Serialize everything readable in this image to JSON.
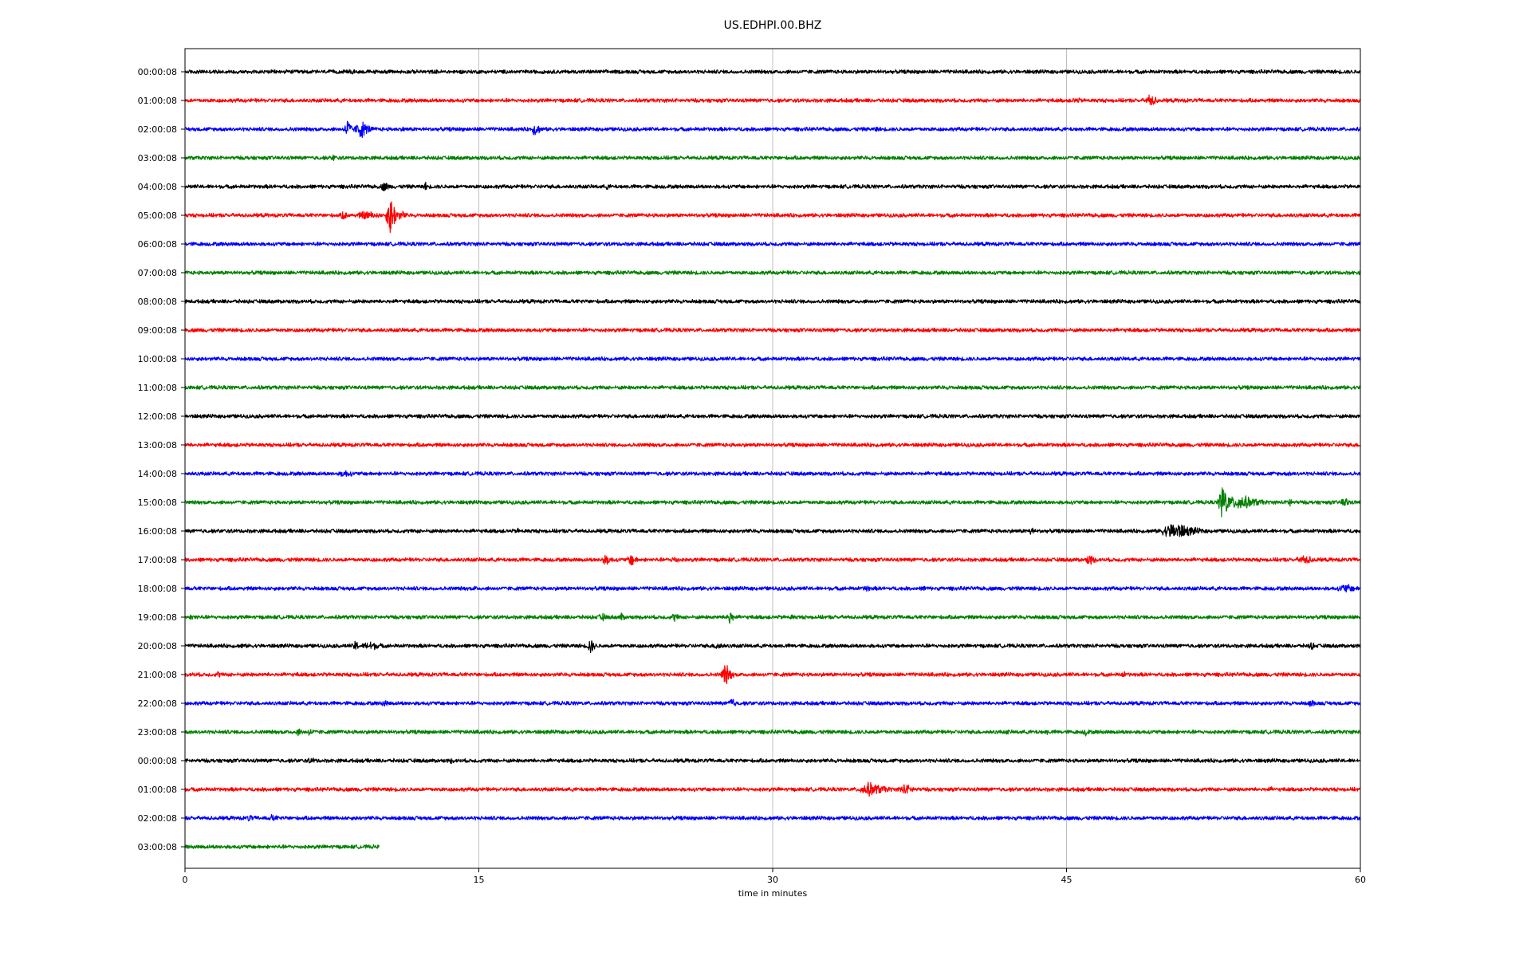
{
  "chart_data": {
    "type": "line",
    "title": "US.EDHPI.00.BHZ",
    "xlabel": "time in minutes",
    "ylabel": "",
    "xlim": [
      0,
      60
    ],
    "x_ticks": [
      "0",
      "15",
      "30",
      "45",
      "60"
    ],
    "x_tick_values": [
      0,
      15,
      30,
      45,
      60
    ],
    "grid": "vertical",
    "legend": "none",
    "colors": [
      "#000000",
      "#ff0000",
      "#0000ff",
      "#008000"
    ],
    "rows": [
      {
        "label": "00:00:08",
        "color": "#000000",
        "end_minute": 60,
        "events": [
          {
            "t": 8.5,
            "amp": 0.2,
            "dur": 0.6
          },
          {
            "t": 13.6,
            "amp": 0.15,
            "dur": 0.3
          }
        ]
      },
      {
        "label": "01:00:08",
        "color": "#ff0000",
        "end_minute": 60,
        "events": [
          {
            "t": 45.5,
            "amp": 0.2,
            "dur": 0.8
          },
          {
            "t": 49.3,
            "amp": 0.45,
            "dur": 0.5
          },
          {
            "t": 55.8,
            "amp": 0.15,
            "dur": 0.4
          }
        ]
      },
      {
        "label": "02:00:08",
        "color": "#0000ff",
        "end_minute": 60,
        "events": [
          {
            "t": 5.5,
            "amp": 0.2,
            "dur": 0.3
          },
          {
            "t": 8.3,
            "amp": 0.7,
            "dur": 0.3
          },
          {
            "t": 9.0,
            "amp": 0.6,
            "dur": 0.6
          },
          {
            "t": 11.2,
            "amp": 0.2,
            "dur": 0.3
          },
          {
            "t": 17.9,
            "amp": 0.45,
            "dur": 0.4
          },
          {
            "t": 35.3,
            "amp": 0.2,
            "dur": 0.3
          }
        ]
      },
      {
        "label": "03:00:08",
        "color": "#008000",
        "end_minute": 60,
        "events": [
          {
            "t": 7.6,
            "amp": 0.3,
            "dur": 0.2
          },
          {
            "t": 24.0,
            "amp": 0.2,
            "dur": 0.3
          }
        ]
      },
      {
        "label": "04:00:08",
        "color": "#000000",
        "end_minute": 60,
        "events": [
          {
            "t": 10.2,
            "amp": 0.35,
            "dur": 0.4
          },
          {
            "t": 12.3,
            "amp": 0.3,
            "dur": 0.2
          },
          {
            "t": 21.6,
            "amp": 0.2,
            "dur": 0.4
          }
        ]
      },
      {
        "label": "05:00:08",
        "color": "#ff0000",
        "end_minute": 60,
        "events": [
          {
            "t": 8.1,
            "amp": 0.35,
            "dur": 0.3
          },
          {
            "t": 9.3,
            "amp": 0.3,
            "dur": 1.2
          },
          {
            "t": 10.5,
            "amp": 1.3,
            "dur": 0.4
          },
          {
            "t": 11.1,
            "amp": 0.3,
            "dur": 0.4
          }
        ]
      },
      {
        "label": "06:00:08",
        "color": "#0000ff",
        "end_minute": 60,
        "events": []
      },
      {
        "label": "07:00:08",
        "color": "#008000",
        "end_minute": 60,
        "events": []
      },
      {
        "label": "08:00:08",
        "color": "#000000",
        "end_minute": 60,
        "events": []
      },
      {
        "label": "09:00:08",
        "color": "#ff0000",
        "end_minute": 60,
        "events": []
      },
      {
        "label": "10:00:08",
        "color": "#0000ff",
        "end_minute": 60,
        "events": []
      },
      {
        "label": "11:00:08",
        "color": "#008000",
        "end_minute": 60,
        "events": []
      },
      {
        "label": "12:00:08",
        "color": "#000000",
        "end_minute": 60,
        "events": []
      },
      {
        "label": "13:00:08",
        "color": "#ff0000",
        "end_minute": 60,
        "events": []
      },
      {
        "label": "14:00:08",
        "color": "#0000ff",
        "end_minute": 60,
        "events": [
          {
            "t": 8.2,
            "amp": 0.25,
            "dur": 0.8
          },
          {
            "t": 56.5,
            "amp": 0.15,
            "dur": 1.5
          }
        ]
      },
      {
        "label": "15:00:08",
        "color": "#008000",
        "end_minute": 60,
        "events": [
          {
            "t": 46.5,
            "amp": 0.15,
            "dur": 0.3
          },
          {
            "t": 53.0,
            "amp": 1.35,
            "dur": 0.4
          },
          {
            "t": 53.9,
            "amp": 0.5,
            "dur": 1.4
          },
          {
            "t": 56.4,
            "amp": 0.35,
            "dur": 0.3
          },
          {
            "t": 59.2,
            "amp": 0.35,
            "dur": 0.5
          }
        ]
      },
      {
        "label": "16:00:08",
        "color": "#000000",
        "end_minute": 60,
        "events": [
          {
            "t": 11.9,
            "amp": 0.15,
            "dur": 0.3
          },
          {
            "t": 17.0,
            "amp": 0.2,
            "dur": 0.3
          },
          {
            "t": 43.2,
            "amp": 0.3,
            "dur": 0.3
          },
          {
            "t": 50.6,
            "amp": 0.55,
            "dur": 1.5
          }
        ]
      },
      {
        "label": "17:00:08",
        "color": "#ff0000",
        "end_minute": 60,
        "events": [
          {
            "t": 7.0,
            "amp": 0.15,
            "dur": 0.4
          },
          {
            "t": 17.0,
            "amp": 0.15,
            "dur": 0.8
          },
          {
            "t": 21.5,
            "amp": 0.35,
            "dur": 0.6
          },
          {
            "t": 22.8,
            "amp": 0.45,
            "dur": 0.4
          },
          {
            "t": 25.0,
            "amp": 0.3,
            "dur": 0.4
          },
          {
            "t": 46.2,
            "amp": 0.35,
            "dur": 0.5
          },
          {
            "t": 50.0,
            "amp": 0.15,
            "dur": 0.6
          },
          {
            "t": 57.2,
            "amp": 0.3,
            "dur": 1.0
          }
        ]
      },
      {
        "label": "18:00:08",
        "color": "#0000ff",
        "end_minute": 60,
        "events": [
          {
            "t": 14.8,
            "amp": 0.2,
            "dur": 0.3
          },
          {
            "t": 34.8,
            "amp": 0.3,
            "dur": 0.3
          },
          {
            "t": 37.8,
            "amp": 0.2,
            "dur": 0.4
          },
          {
            "t": 59.3,
            "amp": 0.3,
            "dur": 1.0
          }
        ]
      },
      {
        "label": "19:00:08",
        "color": "#008000",
        "end_minute": 60,
        "events": [
          {
            "t": 0.5,
            "amp": 0.2,
            "dur": 0.8
          },
          {
            "t": 21.3,
            "amp": 0.3,
            "dur": 0.4
          },
          {
            "t": 22.3,
            "amp": 0.3,
            "dur": 0.3
          },
          {
            "t": 25.0,
            "amp": 0.3,
            "dur": 0.4
          },
          {
            "t": 27.8,
            "amp": 0.55,
            "dur": 0.3
          },
          {
            "t": 31.0,
            "amp": 0.2,
            "dur": 0.4
          }
        ]
      },
      {
        "label": "20:00:08",
        "color": "#000000",
        "end_minute": 60,
        "events": [
          {
            "t": 2.9,
            "amp": 0.2,
            "dur": 0.3
          },
          {
            "t": 8.7,
            "amp": 0.4,
            "dur": 0.3
          },
          {
            "t": 9.5,
            "amp": 0.3,
            "dur": 1.0
          },
          {
            "t": 20.7,
            "amp": 0.55,
            "dur": 0.3
          },
          {
            "t": 27.2,
            "amp": 0.3,
            "dur": 0.5
          },
          {
            "t": 57.5,
            "amp": 0.3,
            "dur": 0.3
          }
        ]
      },
      {
        "label": "21:00:08",
        "color": "#ff0000",
        "end_minute": 60,
        "events": [
          {
            "t": 0.5,
            "amp": 0.15,
            "dur": 0.8
          },
          {
            "t": 1.7,
            "amp": 0.25,
            "dur": 0.3
          },
          {
            "t": 5.8,
            "amp": 0.15,
            "dur": 0.4
          },
          {
            "t": 18.5,
            "amp": 0.15,
            "dur": 0.3
          },
          {
            "t": 27.6,
            "amp": 0.75,
            "dur": 0.4
          },
          {
            "t": 45.1,
            "amp": 0.15,
            "dur": 0.3
          },
          {
            "t": 47.9,
            "amp": 0.25,
            "dur": 0.3
          }
        ]
      },
      {
        "label": "22:00:08",
        "color": "#0000ff",
        "end_minute": 60,
        "events": [
          {
            "t": 10.2,
            "amp": 0.25,
            "dur": 0.4
          },
          {
            "t": 27.9,
            "amp": 0.45,
            "dur": 0.3
          },
          {
            "t": 42.1,
            "amp": 0.15,
            "dur": 0.3
          },
          {
            "t": 57.5,
            "amp": 0.4,
            "dur": 0.2
          }
        ]
      },
      {
        "label": "23:00:08",
        "color": "#008000",
        "end_minute": 60,
        "events": [
          {
            "t": 5.8,
            "amp": 0.25,
            "dur": 0.5
          },
          {
            "t": 6.4,
            "amp": 0.3,
            "dur": 0.3
          },
          {
            "t": 42.0,
            "amp": 0.2,
            "dur": 0.2
          },
          {
            "t": 44.0,
            "amp": 0.2,
            "dur": 0.3
          },
          {
            "t": 46.0,
            "amp": 0.3,
            "dur": 0.3
          }
        ]
      },
      {
        "label": "00:00:08",
        "color": "#000000",
        "end_minute": 60,
        "events": [
          {
            "t": 6.5,
            "amp": 0.2,
            "dur": 0.8
          },
          {
            "t": 13.6,
            "amp": 0.2,
            "dur": 0.3
          }
        ]
      },
      {
        "label": "01:00:08",
        "color": "#ff0000",
        "end_minute": 60,
        "events": [
          {
            "t": 35.0,
            "amp": 0.45,
            "dur": 1.3
          },
          {
            "t": 36.8,
            "amp": 0.35,
            "dur": 0.8
          },
          {
            "t": 55.5,
            "amp": 0.15,
            "dur": 1.2
          }
        ]
      },
      {
        "label": "02:00:08",
        "color": "#0000ff",
        "end_minute": 60,
        "events": [
          {
            "t": 3.3,
            "amp": 0.25,
            "dur": 0.4
          },
          {
            "t": 4.5,
            "amp": 0.25,
            "dur": 0.5
          }
        ]
      },
      {
        "label": "03:00:08",
        "color": "#008000",
        "end_minute": 9.9,
        "events": []
      }
    ]
  }
}
